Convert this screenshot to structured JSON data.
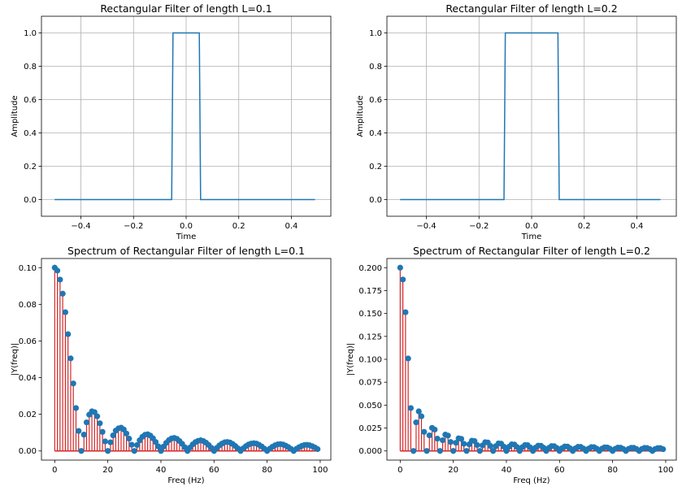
{
  "figure": {
    "bg_color": "#ffffff",
    "line_color": "#1f77b4",
    "stem_color": "#d62728",
    "marker_color": "#1f77b4"
  },
  "chart_data": [
    {
      "type": "line",
      "title": "Rectangular Filter of length L=0.1",
      "xlabel": "Time",
      "ylabel": "Amplitude",
      "xlim": [
        -0.55,
        0.55
      ],
      "ylim": [
        -0.1,
        1.1
      ],
      "grid": true,
      "xticks": [
        -0.4,
        -0.2,
        0.0,
        0.2,
        0.4
      ],
      "xtick_labels": [
        "−0.4",
        "−0.2",
        "0.0",
        "0.2",
        "0.4"
      ],
      "yticks": [
        0.0,
        0.2,
        0.4,
        0.6,
        0.8,
        1.0
      ],
      "ytick_labels": [
        "0.0",
        "0.2",
        "0.4",
        "0.6",
        "0.8",
        "1.0"
      ],
      "x": [
        -0.5,
        -0.055,
        -0.05,
        0.05,
        0.055,
        0.49
      ],
      "y": [
        0,
        0,
        1,
        1,
        0,
        0
      ]
    },
    {
      "type": "line",
      "title": "Rectangular Filter of length L=0.2",
      "xlabel": "Time",
      "ylabel": "Amplitude",
      "xlim": [
        -0.55,
        0.55
      ],
      "ylim": [
        -0.1,
        1.1
      ],
      "grid": true,
      "xticks": [
        -0.4,
        -0.2,
        0.0,
        0.2,
        0.4
      ],
      "xtick_labels": [
        "−0.4",
        "−0.2",
        "0.0",
        "0.2",
        "0.4"
      ],
      "yticks": [
        0.0,
        0.2,
        0.4,
        0.6,
        0.8,
        1.0
      ],
      "ytick_labels": [
        "0.0",
        "0.2",
        "0.4",
        "0.6",
        "0.8",
        "1.0"
      ],
      "x": [
        -0.5,
        -0.105,
        -0.1,
        0.1,
        0.105,
        0.49
      ],
      "y": [
        0,
        0,
        1,
        1,
        0,
        0
      ]
    },
    {
      "type": "stem",
      "title": "Spectrum of Rectangular Filter of length L=0.1",
      "xlabel": "Freq (Hz)",
      "ylabel": "|Y(freq)|",
      "xlim": [
        -5,
        104
      ],
      "ylim": [
        -0.005,
        0.105
      ],
      "grid": false,
      "xticks": [
        0,
        20,
        40,
        60,
        80,
        100
      ],
      "xtick_labels": [
        "0",
        "20",
        "40",
        "60",
        "80",
        "100"
      ],
      "yticks": [
        0.0,
        0.02,
        0.04,
        0.06,
        0.08,
        0.1
      ],
      "ytick_labels": [
        "0.00",
        "0.02",
        "0.04",
        "0.06",
        "0.08",
        "0.10"
      ],
      "x": [
        0,
        1,
        2,
        3,
        4,
        5,
        6,
        7,
        8,
        9,
        10,
        11,
        12,
        13,
        14,
        15,
        16,
        17,
        18,
        19,
        20,
        21,
        22,
        23,
        24,
        25,
        26,
        27,
        28,
        29,
        30,
        31,
        32,
        33,
        34,
        35,
        36,
        37,
        38,
        39,
        40,
        41,
        42,
        43,
        44,
        45,
        46,
        47,
        48,
        49,
        50,
        51,
        52,
        53,
        54,
        55,
        56,
        57,
        58,
        59,
        60,
        61,
        62,
        63,
        64,
        65,
        66,
        67,
        68,
        69,
        70,
        71,
        72,
        73,
        74,
        75,
        76,
        77,
        78,
        79,
        80,
        81,
        82,
        83,
        84,
        85,
        86,
        87,
        88,
        89,
        90,
        91,
        92,
        93,
        94,
        95,
        96,
        97,
        98,
        99
      ],
      "y": [
        0.1,
        0.0984,
        0.0935,
        0.0858,
        0.0757,
        0.0637,
        0.0505,
        0.0368,
        0.0234,
        0.0109,
        0,
        0.0089,
        0.0156,
        0.0198,
        0.0216,
        0.0212,
        0.0189,
        0.0151,
        0.0104,
        0.0052,
        0,
        0.0047,
        0.0085,
        0.0111,
        0.0123,
        0.0127,
        0.0117,
        0.0095,
        0.0067,
        0.0034,
        0,
        0.0032,
        0.0058,
        0.0077,
        0.0088,
        0.0091,
        0.0084,
        0.0069,
        0.0049,
        0.0025,
        0,
        0.0024,
        0.0044,
        0.0059,
        0.0068,
        0.0071,
        0.0066,
        0.0054,
        0.0039,
        0.002,
        0,
        0.0019,
        0.0036,
        0.0048,
        0.0055,
        0.0058,
        0.0054,
        0.0045,
        0.0032,
        0.0017,
        0,
        0.0016,
        0.003,
        0.004,
        0.0047,
        0.0049,
        0.0046,
        0.0038,
        0.0027,
        0.0014,
        0,
        0.0014,
        0.0026,
        0.0035,
        0.004,
        0.0042,
        0.004,
        0.0033,
        0.0024,
        0.0012,
        0,
        0.0012,
        0.0023,
        0.0031,
        0.0036,
        0.0037,
        0.0035,
        0.0029,
        0.0021,
        0.0011,
        0,
        0.0011,
        0.002,
        0.0027,
        0.0032,
        0.0033,
        0.0031,
        0.0026,
        0.0019,
        0.001
      ]
    },
    {
      "type": "stem",
      "title": "Spectrum of Rectangular Filter of length L=0.2",
      "xlabel": "Freq (Hz)",
      "ylabel": "|Y(freq)|",
      "xlim": [
        -5,
        104
      ],
      "ylim": [
        -0.01,
        0.21
      ],
      "grid": false,
      "xticks": [
        0,
        20,
        40,
        60,
        80,
        100
      ],
      "xtick_labels": [
        "0",
        "20",
        "40",
        "60",
        "80",
        "100"
      ],
      "yticks": [
        0.0,
        0.025,
        0.05,
        0.075,
        0.1,
        0.125,
        0.15,
        0.175,
        0.2
      ],
      "ytick_labels": [
        "0.000",
        "0.025",
        "0.050",
        "0.075",
        "0.100",
        "0.125",
        "0.150",
        "0.175",
        "0.200"
      ],
      "x": [
        0,
        1,
        2,
        3,
        4,
        5,
        6,
        7,
        8,
        9,
        10,
        11,
        12,
        13,
        14,
        15,
        16,
        17,
        18,
        19,
        20,
        21,
        22,
        23,
        24,
        25,
        26,
        27,
        28,
        29,
        30,
        31,
        32,
        33,
        34,
        35,
        36,
        37,
        38,
        39,
        40,
        41,
        42,
        43,
        44,
        45,
        46,
        47,
        48,
        49,
        50,
        51,
        52,
        53,
        54,
        55,
        56,
        57,
        58,
        59,
        60,
        61,
        62,
        63,
        64,
        65,
        66,
        67,
        68,
        69,
        70,
        71,
        72,
        73,
        74,
        75,
        76,
        77,
        78,
        79,
        80,
        81,
        82,
        83,
        84,
        85,
        86,
        87,
        88,
        89,
        90,
        91,
        92,
        93,
        94,
        95,
        96,
        97,
        98,
        99
      ],
      "y": [
        0.2,
        0.1871,
        0.1514,
        0.1009,
        0.0468,
        0,
        0.0312,
        0.0432,
        0.0378,
        0.0208,
        0,
        0.017,
        0.0252,
        0.0233,
        0.0134,
        0,
        0.0117,
        0.0178,
        0.0168,
        0.0098,
        0,
        0.0089,
        0.0138,
        0.0132,
        0.0078,
        0,
        0.0072,
        0.0112,
        0.0108,
        0.0064,
        0,
        0.006,
        0.0095,
        0.0092,
        0.0055,
        0,
        0.0052,
        0.0082,
        0.008,
        0.0048,
        0,
        0.0046,
        0.0072,
        0.007,
        0.0043,
        0,
        0.0041,
        0.0064,
        0.0063,
        0.0038,
        0,
        0.0037,
        0.0058,
        0.0057,
        0.0035,
        0,
        0.0033,
        0.0053,
        0.0052,
        0.0032,
        0,
        0.0031,
        0.0049,
        0.0048,
        0.0029,
        0,
        0.0028,
        0.0045,
        0.0044,
        0.0027,
        0,
        0.0026,
        0.0042,
        0.0041,
        0.0025,
        0,
        0.0025,
        0.0039,
        0.0038,
        0.0024,
        0,
        0.0023,
        0.0037,
        0.0036,
        0.0022,
        0,
        0.0022,
        0.0034,
        0.0034,
        0.0021,
        0,
        0.0021,
        0.0033,
        0.0032,
        0.002,
        0,
        0.002,
        0.0031,
        0.0031,
        0.0019
      ]
    }
  ]
}
